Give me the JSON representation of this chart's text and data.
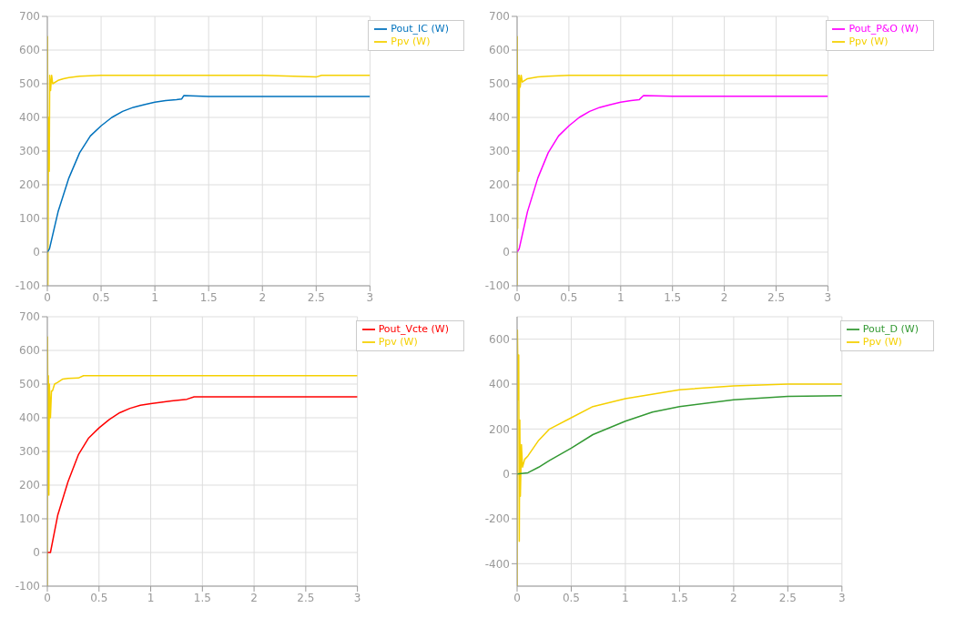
{
  "chart_data": [
    {
      "type": "line",
      "xlim": [
        0,
        3
      ],
      "xticks": [
        0,
        0.5,
        1,
        1.5,
        2,
        2.5,
        3
      ],
      "ylim": [
        -100,
        700
      ],
      "yticks": [
        -100,
        0,
        100,
        200,
        300,
        400,
        500,
        600,
        700
      ],
      "grid": true,
      "legend": "top right",
      "series": [
        {
          "name": "Ppv (W)",
          "color": "#f5d000",
          "x": [
            0,
            0.002,
            0.005,
            0.008,
            0.012,
            0.018,
            0.022,
            0.03,
            0.04,
            0.05,
            0.1,
            0.15,
            0.2,
            0.3,
            0.5,
            1,
            1.5,
            2,
            2.5,
            2.55,
            3
          ],
          "values": [
            0,
            640,
            -100,
            150,
            400,
            240,
            525,
            480,
            525,
            500,
            510,
            515,
            518,
            522,
            525,
            525,
            525,
            525,
            520,
            525,
            525
          ]
        },
        {
          "name": "Pout_IC (W)",
          "color": "#0072bd",
          "x": [
            0,
            0.02,
            0.1,
            0.2,
            0.3,
            0.4,
            0.5,
            0.6,
            0.7,
            0.8,
            0.9,
            1,
            1.1,
            1.2,
            1.25,
            1.27,
            1.5,
            2,
            2.5,
            3
          ],
          "values": [
            0,
            10,
            120,
            220,
            295,
            345,
            375,
            400,
            418,
            430,
            438,
            445,
            450,
            453,
            455,
            465,
            462,
            462,
            462,
            462
          ]
        }
      ]
    },
    {
      "type": "line",
      "xlim": [
        0,
        3
      ],
      "xticks": [
        0,
        0.5,
        1,
        1.5,
        2,
        2.5,
        3
      ],
      "ylim": [
        -100,
        700
      ],
      "yticks": [
        -100,
        0,
        100,
        200,
        300,
        400,
        500,
        600,
        700
      ],
      "grid": true,
      "legend": "top right",
      "series": [
        {
          "name": "Ppv (W)",
          "color": "#f5d000",
          "x": [
            0,
            0.002,
            0.005,
            0.008,
            0.012,
            0.018,
            0.022,
            0.03,
            0.04,
            0.05,
            0.1,
            0.2,
            0.3,
            0.5,
            1,
            1.5,
            2,
            2.5,
            3
          ],
          "values": [
            -100,
            640,
            70,
            330,
            525,
            240,
            525,
            490,
            525,
            505,
            515,
            520,
            522,
            525,
            525,
            525,
            525,
            525,
            525
          ]
        },
        {
          "name": "Pout_P&O (W)",
          "color": "#ff00ff",
          "x": [
            0,
            0.02,
            0.1,
            0.2,
            0.3,
            0.4,
            0.5,
            0.6,
            0.7,
            0.8,
            0.9,
            1,
            1.1,
            1.18,
            1.22,
            1.5,
            2,
            2.5,
            3
          ],
          "values": [
            0,
            10,
            120,
            220,
            295,
            345,
            375,
            400,
            418,
            430,
            438,
            445,
            450,
            453,
            465,
            463,
            463,
            463,
            463
          ]
        }
      ]
    },
    {
      "type": "line",
      "xlim": [
        0,
        3
      ],
      "xticks": [
        0,
        0.5,
        1,
        1.5,
        2,
        2.5,
        3
      ],
      "ylim": [
        -100,
        700
      ],
      "yticks": [
        -100,
        0,
        100,
        200,
        300,
        400,
        500,
        600,
        700
      ],
      "grid": true,
      "legend": "top right",
      "series": [
        {
          "name": "Ppv (W)",
          "color": "#f5d000",
          "x": [
            0,
            0.002,
            0.006,
            0.01,
            0.015,
            0.02,
            0.03,
            0.04,
            0.05,
            0.07,
            0.1,
            0.15,
            0.2,
            0.3,
            0.35,
            0.5,
            1,
            2,
            3
          ],
          "values": [
            -100,
            640,
            330,
            525,
            170,
            500,
            400,
            480,
            480,
            500,
            505,
            515,
            517,
            518,
            525,
            525,
            525,
            525,
            525
          ]
        },
        {
          "name": "Pout_Vcte (W)",
          "color": "#ff0000",
          "x": [
            0,
            0.03,
            0.1,
            0.2,
            0.3,
            0.4,
            0.5,
            0.6,
            0.7,
            0.8,
            0.9,
            1,
            1.2,
            1.35,
            1.42,
            2,
            2.5,
            3
          ],
          "values": [
            0,
            0,
            110,
            210,
            290,
            340,
            370,
            395,
            415,
            428,
            437,
            442,
            450,
            455,
            462,
            462,
            462,
            462
          ]
        }
      ]
    },
    {
      "type": "line",
      "xlim": [
        0,
        3
      ],
      "xticks": [
        0,
        0.5,
        1,
        1.5,
        2,
        2.5,
        3
      ],
      "ylim": [
        -500,
        700
      ],
      "yticks": [
        -400,
        -200,
        0,
        200,
        400,
        600
      ],
      "grid": true,
      "legend": "top right",
      "series": [
        {
          "name": "Ppv (W)",
          "color": "#f5d000",
          "x": [
            0,
            0.003,
            0.01,
            0.015,
            0.02,
            0.025,
            0.03,
            0.04,
            0.05,
            0.07,
            0.1,
            0.2,
            0.3,
            0.5,
            0.7,
            1,
            1.5,
            2,
            2.5,
            3
          ],
          "values": [
            -500,
            640,
            330,
            530,
            -300,
            240,
            -100,
            130,
            30,
            65,
            80,
            150,
            200,
            250,
            300,
            335,
            375,
            392,
            400,
            400
          ]
        },
        {
          "name": "Pout_D (W)",
          "color": "#339933",
          "x": [
            0,
            0.1,
            0.2,
            0.3,
            0.5,
            0.7,
            1,
            1.25,
            1.5,
            2,
            2.5,
            3
          ],
          "values": [
            0,
            5,
            30,
            60,
            115,
            175,
            235,
            275,
            300,
            330,
            345,
            348
          ]
        }
      ]
    }
  ]
}
